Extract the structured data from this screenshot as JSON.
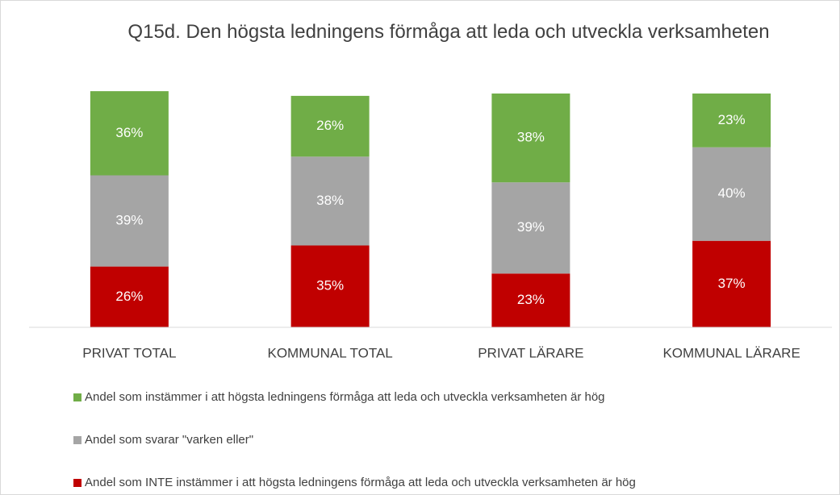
{
  "chart_data": {
    "type": "stacked_bar",
    "title": "Q15d. Den högsta ledningens förmåga att leda och utveckla verksamheten",
    "categories": [
      "PRIVAT TOTAL",
      "KOMMUNAL TOTAL",
      "PRIVAT LÄRARE",
      "KOMMUNAL LÄRARE"
    ],
    "series": [
      {
        "name": "Andel som instämmer i att högsta ledningens förmåga att leda och utveckla verksamheten är hög",
        "color": "#70ad47",
        "values": [
          36,
          26,
          38,
          23
        ],
        "value_labels": [
          "36%",
          "26%",
          "38%",
          "23%"
        ]
      },
      {
        "name": "Andel som svarar \"varken eller\"",
        "color": "#a5a5a5",
        "values": [
          39,
          38,
          39,
          40
        ],
        "value_labels": [
          "39%",
          "38%",
          "39%",
          "40%"
        ]
      },
      {
        "name": "Andel som INTE instämmer i att högsta ledningens förmåga att leda och utveckla verksamheten är hög",
        "color": "#c00000",
        "values": [
          26,
          35,
          23,
          37
        ],
        "value_labels": [
          "26%",
          "35%",
          "23%",
          "37%"
        ]
      }
    ],
    "ylim": [
      0,
      100
    ],
    "legend": "bottom"
  }
}
